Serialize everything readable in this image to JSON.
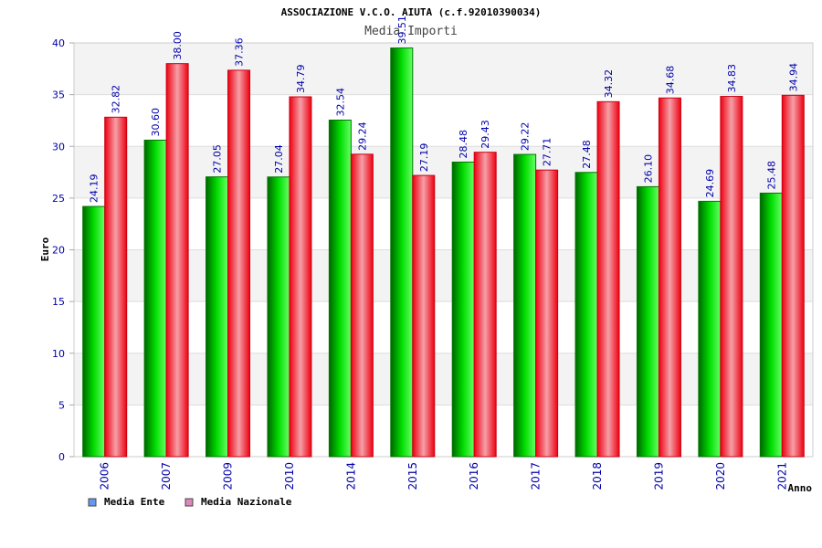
{
  "chart_data": {
    "type": "bar",
    "title": "ASSOCIAZIONE V.C.O. AIUTA (c.f.92010390034)",
    "subtitle": "Media Importi",
    "xlabel": "Anno",
    "ylabel": "Euro",
    "ylim": [
      0,
      40
    ],
    "yticks": [
      0,
      5,
      10,
      15,
      20,
      25,
      30,
      35,
      40
    ],
    "grid": true,
    "legend_position": "bottom-left",
    "categories": [
      "2006",
      "2007",
      "2009",
      "2010",
      "2014",
      "2015",
      "2016",
      "2017",
      "2018",
      "2019",
      "2020",
      "2021"
    ],
    "series": [
      {
        "name": "Media Ente",
        "legend_color": "#6699ee",
        "bar_color": "#00aa00",
        "values": [
          24.19,
          30.6,
          27.05,
          27.04,
          32.54,
          39.51,
          28.48,
          29.22,
          27.48,
          26.1,
          24.69,
          25.48
        ],
        "labels": [
          "24.19",
          "30.60",
          "27.05",
          "27.04",
          "32.54",
          "39.51",
          "28.48",
          "29.22",
          "27.48",
          "26.10",
          "24.69",
          "25.48"
        ]
      },
      {
        "name": "Media Nazionale",
        "legend_color": "#dd88bb",
        "bar_color": "#ee1122",
        "values": [
          32.82,
          38.0,
          37.36,
          34.79,
          29.24,
          27.19,
          29.43,
          27.71,
          34.32,
          34.68,
          34.83,
          34.94
        ],
        "labels": [
          "32.82",
          "38.00",
          "37.36",
          "34.79",
          "29.24",
          "27.19",
          "29.43",
          "27.71",
          "34.32",
          "34.68",
          "34.83",
          "34.94"
        ]
      }
    ]
  }
}
